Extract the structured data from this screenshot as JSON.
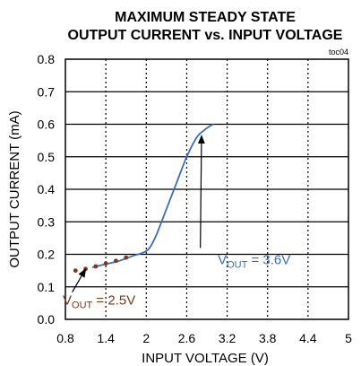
{
  "chart_data": {
    "type": "line",
    "title_line1": "MAXIMUM STEADY STATE",
    "title_line2": "OUTPUT CURRENT vs. INPUT VOLTAGE",
    "tag": "toc04",
    "xlabel": "INPUT VOLTAGE (V)",
    "ylabel": "OUTPUT CURRENT (mA)",
    "xlim": [
      0.8,
      5.0
    ],
    "ylim": [
      0.0,
      0.8
    ],
    "xticks": [
      0.8,
      1.4,
      2.0,
      2.6,
      3.2,
      3.8,
      4.4,
      5.0
    ],
    "xtick_labels": [
      "0.8",
      "1.4",
      "2",
      "2.6",
      "3.2",
      "3.8",
      "4.4",
      "5"
    ],
    "yticks": [
      0.0,
      0.1,
      0.2,
      0.3,
      0.4,
      0.5,
      0.6,
      0.7,
      0.8
    ],
    "ytick_labels": [
      "0.0",
      "0.1",
      "0.2",
      "0.3",
      "0.4",
      "0.5",
      "0.6",
      "0.7",
      "0.8"
    ],
    "grid": true,
    "series": [
      {
        "name": "VOUT = 3.6V",
        "color": "#3a6fb5",
        "style": "solid",
        "x": [
          1.2,
          1.4,
          1.6,
          1.8,
          1.95,
          2.05,
          2.15,
          2.3,
          2.45,
          2.6,
          2.75,
          2.85,
          2.95,
          3.0
        ],
        "y": [
          0.16,
          0.17,
          0.18,
          0.195,
          0.205,
          0.22,
          0.26,
          0.34,
          0.42,
          0.5,
          0.56,
          0.58,
          0.595,
          0.6
        ]
      },
      {
        "name": "VOUT = 2.5V",
        "color": "#7a3a1a",
        "style": "dotted",
        "x": [
          0.95,
          1.1,
          1.25,
          1.4,
          1.55,
          1.7
        ],
        "y": [
          0.15,
          0.155,
          0.163,
          0.172,
          0.18,
          0.19
        ]
      }
    ],
    "annotations": [
      {
        "name": "VOUT = 3.6V",
        "main": "V",
        "sub": "OUT",
        "rest": " = 3.6V",
        "color": "#3a6fb5",
        "point": [
          2.82,
          0.565
        ],
        "label_at": [
          3.6,
          0.17
        ]
      },
      {
        "name": "VOUT = 2.5V",
        "main": "V",
        "sub": "OUT",
        "rest": " = 2.5V",
        "color": "#7a3a1a",
        "point": [
          1.1,
          0.155
        ],
        "label_at": [
          1.3,
          0.045
        ]
      }
    ]
  }
}
